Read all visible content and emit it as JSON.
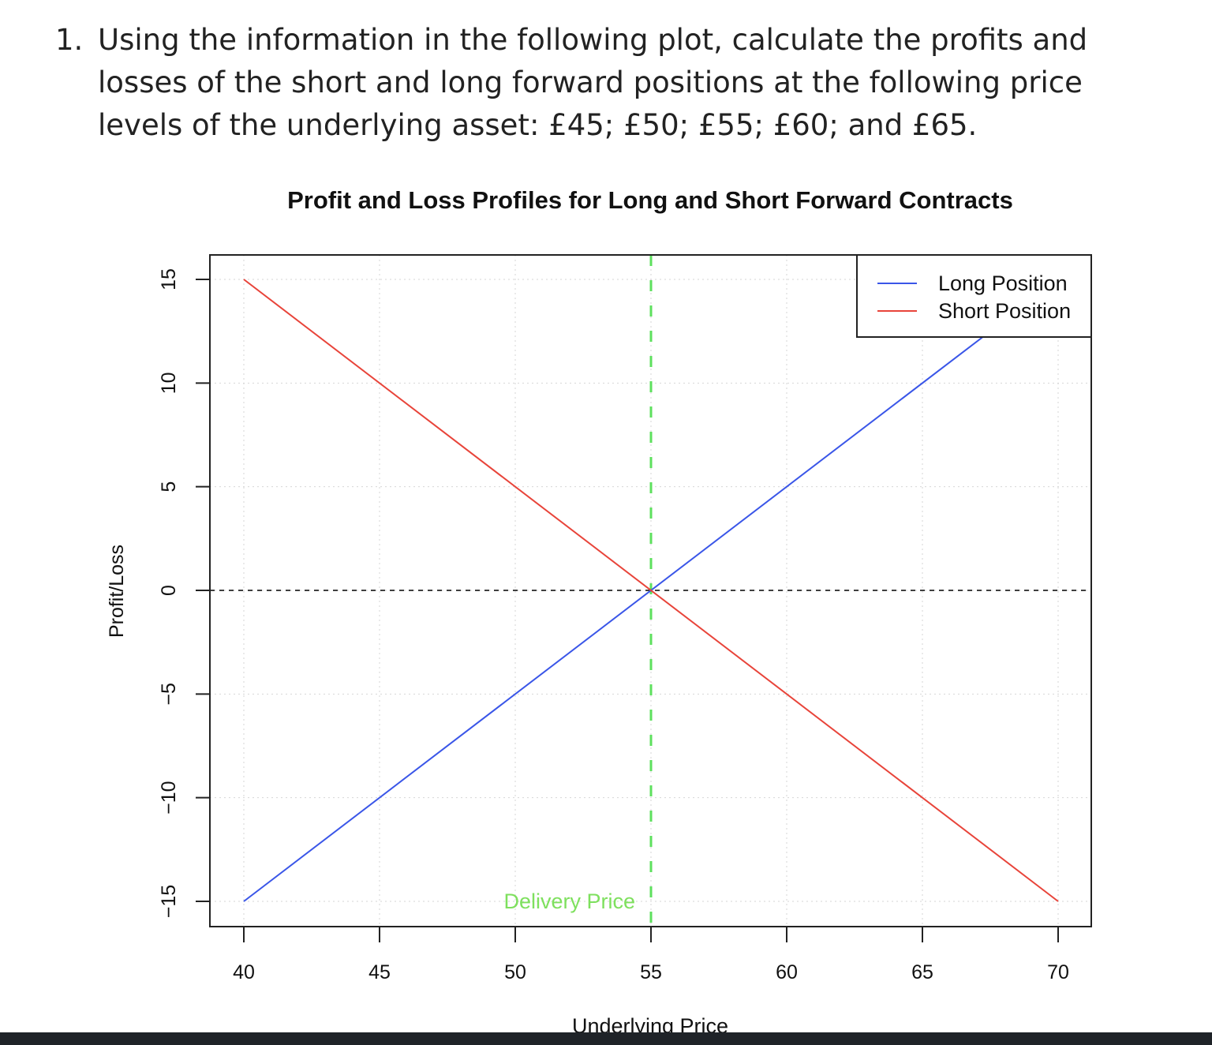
{
  "question": {
    "number": "1.",
    "text": "Using the information in the following plot, calculate the profits and losses of the short and long forward positions at the following price levels of the underlying asset: £45; £50; £55; £60; and £65."
  },
  "chart_data": {
    "type": "line",
    "title": "Profit and Loss Profiles for Long and Short Forward Contracts",
    "xlabel": "Underlying Price",
    "ylabel": "Profit/Loss",
    "xlim": [
      40,
      70
    ],
    "ylim": [
      -15,
      15
    ],
    "x_ticks": [
      40,
      45,
      50,
      55,
      60,
      65,
      70
    ],
    "y_ticks": [
      -15,
      -10,
      -5,
      0,
      5,
      10,
      15
    ],
    "grid": true,
    "legend_position": "top-right",
    "series": [
      {
        "name": "Long Position",
        "color": "#3a56e8",
        "x": [
          40,
          70
        ],
        "y": [
          -15,
          15
        ]
      },
      {
        "name": "Short Position",
        "color": "#e8443a",
        "x": [
          40,
          70
        ],
        "y": [
          15,
          -15
        ]
      }
    ],
    "reference_lines": [
      {
        "orientation": "vertical",
        "value": 55,
        "color": "#5ee05e",
        "style": "dashed"
      },
      {
        "orientation": "horizontal",
        "value": 0,
        "color": "#000000",
        "style": "dashed"
      }
    ],
    "annotations": [
      {
        "text": "Delivery Price",
        "x": 55,
        "y": -15,
        "color": "#7ee05e"
      }
    ]
  }
}
